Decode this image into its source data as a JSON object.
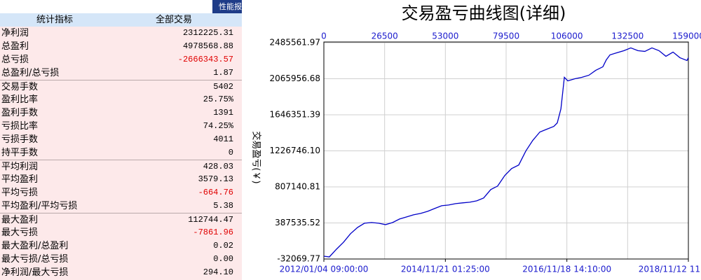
{
  "table": {
    "title": "性能报",
    "header": [
      "统计指标",
      "全部交易"
    ],
    "groups": [
      {
        "rows": [
          [
            "净利润",
            "2312225.31"
          ],
          [
            "总盈利",
            "4978568.88"
          ],
          [
            "总亏损",
            "-2666343.57"
          ],
          [
            "总盈利/总亏损",
            "1.87"
          ]
        ]
      },
      {
        "rows": [
          [
            "交易手数",
            "5402"
          ],
          [
            "盈利比率",
            "25.75%"
          ],
          [
            "盈利手数",
            "1391"
          ],
          [
            "亏损比率",
            "74.25%"
          ],
          [
            "亏损手数",
            "4011"
          ],
          [
            "持平手数",
            "0"
          ]
        ]
      },
      {
        "rows": [
          [
            "平均利润",
            "428.03"
          ],
          [
            "平均盈利",
            "3579.13"
          ],
          [
            "平均亏损",
            "-664.76"
          ],
          [
            "平均盈利/平均亏损",
            "5.38"
          ]
        ]
      },
      {
        "rows": [
          [
            "最大盈利",
            "112744.47"
          ],
          [
            "最大亏损",
            "-7861.96"
          ],
          [
            "最大盈利/总盈利",
            "0.02"
          ],
          [
            "最大亏损/总亏损",
            "0.00"
          ],
          [
            "净利润/最大亏损",
            "294.10"
          ]
        ]
      }
    ]
  },
  "chart_data": {
    "type": "line",
    "title": "交易盈亏曲线图(详细)",
    "y_label": "交易盈亏(￥)",
    "x": [
      0,
      2400,
      5500,
      8600,
      11600,
      14700,
      17700,
      20800,
      23900,
      26900,
      30000,
      33000,
      36100,
      39100,
      42200,
      45300,
      48300,
      51400,
      54400,
      57500,
      60500,
      63600,
      66700,
      69700,
      72800,
      75800,
      78900,
      81900,
      85000,
      88100,
      91100,
      94200,
      97200,
      100300,
      101800,
      103400,
      104900,
      106400,
      109500,
      112500,
      115600,
      118600,
      121700,
      123200,
      124800,
      127800,
      130900,
      133900,
      137000,
      140000,
      143100,
      146200,
      149200,
      152300,
      155300,
      158400,
      159000
    ],
    "series": [
      {
        "color": "#0000c8",
        "values": [
          600,
          -7600,
          82200,
          163900,
          261800,
          335300,
          384300,
          392500,
          384300,
          368000,
          392500,
          433300,
          457800,
          482300,
          498600,
          523100,
          555700,
          588400,
          596600,
          612900,
          621100,
          629200,
          645500,
          678200,
          776200,
          817000,
          939400,
          1021100,
          1061900,
          1225200,
          1347600,
          1445600,
          1478300,
          1510900,
          1551700,
          1715000,
          2082400,
          2041600,
          2066100,
          2082400,
          2106900,
          2164000,
          2204900,
          2286500,
          2343700,
          2368100,
          2392600,
          2425300,
          2392600,
          2384500,
          2425300,
          2392600,
          2327300,
          2376300,
          2311000,
          2278300,
          2311000
        ]
      }
    ],
    "xlim": [
      0,
      159000
    ],
    "ylim": [
      -32069.77,
      2493700
    ],
    "xticks": [
      0,
      26500,
      53000,
      79500,
      106000,
      132500,
      159000
    ],
    "x2ticks": [
      {
        "value": 0,
        "label": "2012/01/04 09:00:00"
      },
      {
        "value": 53000,
        "label": "2014/11/21 01:25:00"
      },
      {
        "value": 106000,
        "label": "2016/11/18 14:10:00"
      },
      {
        "value": 159000,
        "label": "2018/11/12 11"
      }
    ],
    "yticks": [
      2485561.97,
      2065956.68,
      1646351.39,
      {
        "value": 1226746.1,
        "label": "1226746.10"
      },
      807140.81,
      387535.52,
      -32069.77
    ],
    "grid": true
  }
}
